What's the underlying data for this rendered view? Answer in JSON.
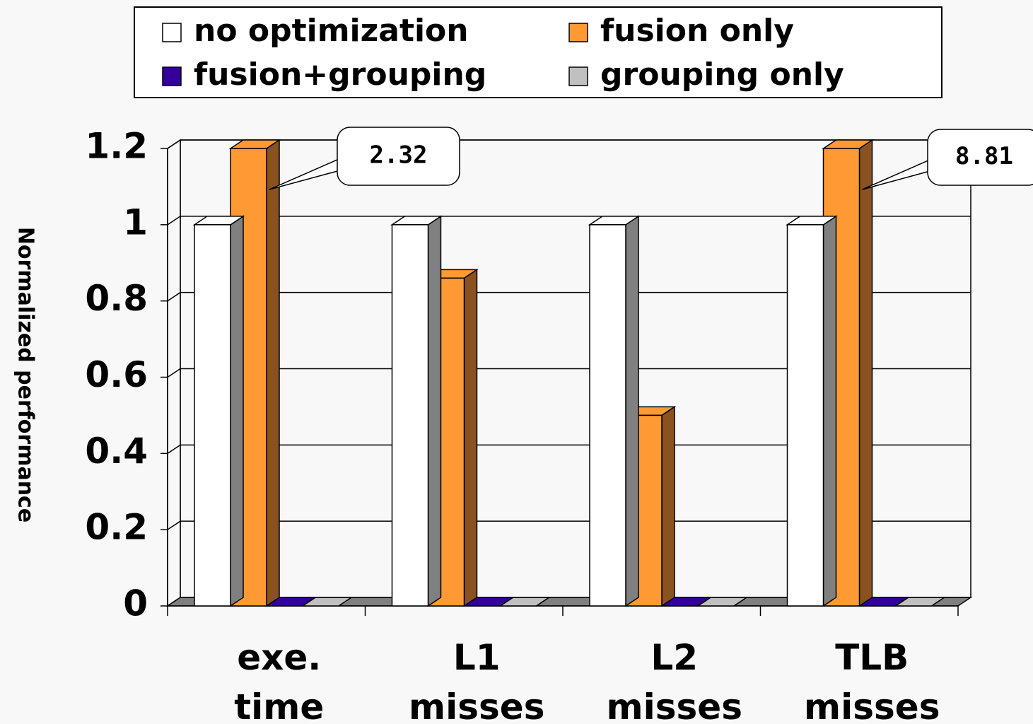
{
  "chart_data": {
    "type": "bar3d",
    "ylabel": "Normalized performance",
    "categories": [
      "exe. time",
      "L1 misses",
      "L2 misses",
      "TLB misses"
    ],
    "series": [
      {
        "name": "no optimization",
        "color": "#ffffff",
        "side": "#808080",
        "values": [
          1,
          1,
          1,
          1
        ]
      },
      {
        "name": "fusion only",
        "color": "#ff9933",
        "side": "#8a5220",
        "values": [
          2.32,
          0.86,
          0.5,
          8.81
        ],
        "value_labels": [
          "2.32",
          null,
          null,
          "8.81"
        ]
      },
      {
        "name": "fusion+grouping",
        "color": "#330099",
        "side": "#1a0050",
        "values": [
          0,
          0,
          0,
          0
        ]
      },
      {
        "name": "grouping only",
        "color": "#c0c0c0",
        "side": "#808080",
        "values": [
          0,
          0,
          0,
          0
        ]
      }
    ],
    "ylim": [
      0,
      1.2
    ],
    "yticks": [
      0,
      0.2,
      0.4,
      0.6,
      0.8,
      1,
      1.2
    ],
    "grid": true
  }
}
